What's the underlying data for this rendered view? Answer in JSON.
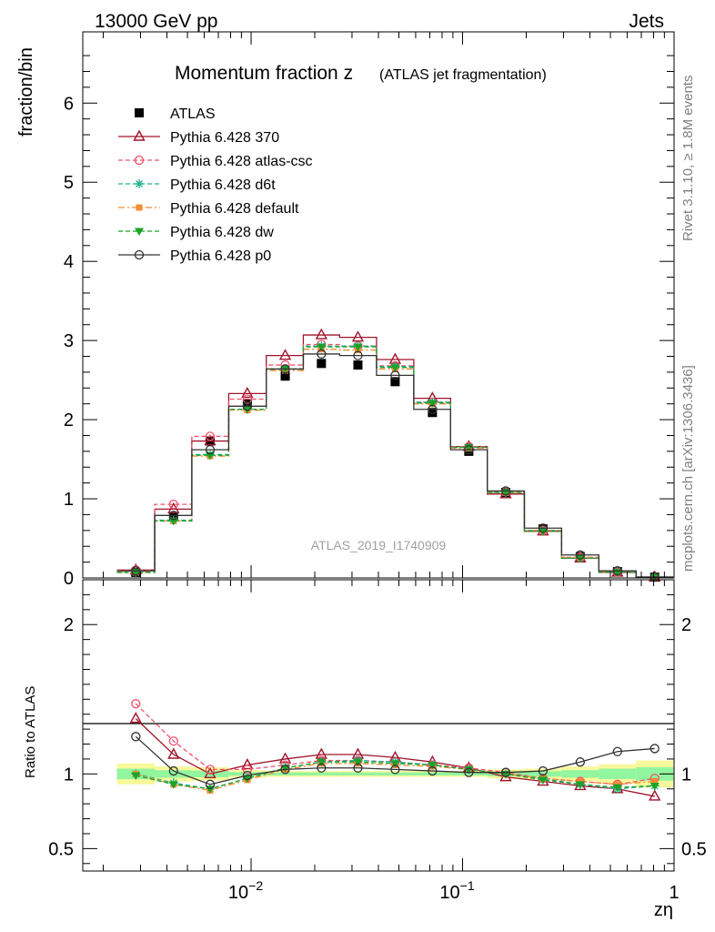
{
  "header": {
    "left": "13000 GeV pp",
    "right": "Jets"
  },
  "side_labels": {
    "rivet": "Rivet 3.1.10, ≥ 1.8M events",
    "mcplots": "mcplots.cern.ch [arXiv:1306.3436]"
  },
  "chart_data": [
    {
      "type": "line",
      "title": "Momentum fraction z",
      "subtitle": "(ATLAS jet fragmentation)",
      "ylabel": "fraction/bin",
      "xlabel": "zη",
      "xscale": "log",
      "xlim": [
        0.0016,
        1
      ],
      "ylim": [
        0,
        6.9
      ],
      "yticks": [
        0,
        1,
        2,
        3,
        4,
        5,
        6
      ],
      "xtick_labels": [
        "10^-2",
        "10^-1",
        "1"
      ],
      "legend_position": "top-left",
      "watermark": "ATLAS_2019_I1740909",
      "x": [
        0.00285,
        0.0043,
        0.0064,
        0.0096,
        0.0145,
        0.0215,
        0.032,
        0.048,
        0.072,
        0.107,
        0.16,
        0.24,
        0.36,
        0.54,
        0.81
      ],
      "series": [
        {
          "name": "ATLAS",
          "color": "#000000",
          "marker": "square",
          "line": "none",
          "values": [
            0.07,
            0.77,
            1.73,
            2.2,
            2.55,
            2.71,
            2.69,
            2.48,
            2.09,
            1.6,
            1.08,
            0.62,
            0.27,
            0.08,
            0.01
          ]
        },
        {
          "name": "Pythia 6.428 370",
          "color": "#a0142b",
          "marker": "triangle-open",
          "line": "solid",
          "values": [
            0.1,
            0.87,
            1.73,
            2.33,
            2.81,
            3.07,
            3.04,
            2.76,
            2.27,
            1.66,
            1.06,
            0.59,
            0.25,
            0.07,
            0.01
          ]
        },
        {
          "name": "Pythia 6.428 atlas-csc",
          "color": "#f0506e",
          "marker": "circle-open",
          "line": "dashed",
          "values": [
            0.1,
            0.93,
            1.79,
            2.26,
            2.69,
            2.95,
            2.93,
            2.68,
            2.22,
            1.66,
            1.09,
            0.6,
            0.26,
            0.075,
            0.01
          ]
        },
        {
          "name": "Pythia 6.428 d6t",
          "color": "#1ab38c",
          "marker": "star",
          "line": "dashed",
          "values": [
            0.07,
            0.73,
            1.56,
            2.13,
            2.64,
            2.93,
            2.93,
            2.67,
            2.22,
            1.65,
            1.08,
            0.6,
            0.25,
            0.073,
            0.01
          ]
        },
        {
          "name": "Pythia 6.428 default",
          "color": "#f58b33",
          "marker": "square",
          "line": "dashdot",
          "values": [
            0.07,
            0.72,
            1.54,
            2.12,
            2.62,
            2.89,
            2.88,
            2.64,
            2.2,
            1.64,
            1.08,
            0.6,
            0.26,
            0.075,
            0.01
          ]
        },
        {
          "name": "Pythia 6.428 dw",
          "color": "#19a32a",
          "marker": "triangle-down",
          "line": "dashed",
          "values": [
            0.07,
            0.72,
            1.55,
            2.13,
            2.64,
            2.92,
            2.92,
            2.66,
            2.21,
            1.65,
            1.08,
            0.59,
            0.25,
            0.073,
            0.01
          ]
        },
        {
          "name": "Pythia 6.428 p0",
          "color": "#333333",
          "marker": "circle-open",
          "line": "solid",
          "values": [
            0.09,
            0.79,
            1.62,
            2.17,
            2.64,
            2.83,
            2.81,
            2.56,
            2.13,
            1.62,
            1.1,
            0.63,
            0.29,
            0.09,
            0.012
          ]
        }
      ]
    },
    {
      "type": "line",
      "ylabel": "Ratio to ATLAS",
      "xlabel": "zη",
      "xscale": "log",
      "xlim": [
        0.0016,
        1
      ],
      "ylim": [
        0.35,
        2.3
      ],
      "yticks": [
        0.5,
        1,
        2
      ],
      "reference_line": 1,
      "x": [
        0.00285,
        0.0043,
        0.0064,
        0.0096,
        0.0145,
        0.0215,
        0.032,
        0.048,
        0.072,
        0.107,
        0.16,
        0.24,
        0.36,
        0.54,
        0.81
      ],
      "bands": {
        "yellow_half_width": [
          0.07,
          0.05,
          0.045,
          0.025,
          0.02,
          0.02,
          0.02,
          0.02,
          0.02,
          0.02,
          0.03,
          0.035,
          0.05,
          0.065,
          0.09
        ],
        "green_half_width": [
          0.035,
          0.025,
          0.022,
          0.012,
          0.01,
          0.01,
          0.01,
          0.01,
          0.01,
          0.01,
          0.015,
          0.018,
          0.025,
          0.035,
          0.045
        ],
        "yellow_color": "#f7f89a",
        "green_color": "#92f59f"
      },
      "series": [
        {
          "name": "Pythia 6.428 370",
          "color": "#a0142b",
          "values": [
            1.37,
            1.13,
            1.0,
            1.06,
            1.1,
            1.13,
            1.13,
            1.11,
            1.08,
            1.04,
            0.98,
            0.95,
            0.92,
            0.9,
            0.85
          ]
        },
        {
          "name": "Pythia 6.428 atlas-csc",
          "color": "#f0506e",
          "values": [
            1.47,
            1.22,
            1.03,
            1.03,
            1.06,
            1.09,
            1.09,
            1.08,
            1.06,
            1.04,
            1.01,
            0.97,
            0.95,
            0.93,
            0.97
          ]
        },
        {
          "name": "Pythia 6.428 d6t",
          "color": "#1ab38c",
          "values": [
            1.0,
            0.94,
            0.9,
            0.97,
            1.04,
            1.08,
            1.09,
            1.08,
            1.06,
            1.03,
            1.0,
            0.97,
            0.93,
            0.9,
            0.92
          ]
        },
        {
          "name": "Pythia 6.428 default",
          "color": "#f58b33",
          "values": [
            1.0,
            0.93,
            0.89,
            0.96,
            1.03,
            1.07,
            1.07,
            1.06,
            1.05,
            1.03,
            1.0,
            0.97,
            0.95,
            0.93,
            0.95
          ]
        },
        {
          "name": "Pythia 6.428 dw",
          "color": "#19a32a",
          "values": [
            0.99,
            0.93,
            0.9,
            0.97,
            1.04,
            1.08,
            1.08,
            1.07,
            1.06,
            1.03,
            1.0,
            0.96,
            0.93,
            0.91,
            0.92
          ]
        },
        {
          "name": "Pythia 6.428 p0",
          "color": "#333333",
          "values": [
            1.25,
            1.02,
            0.93,
            0.99,
            1.03,
            1.04,
            1.04,
            1.03,
            1.02,
            1.01,
            1.01,
            1.02,
            1.08,
            1.15,
            1.17
          ]
        }
      ]
    }
  ]
}
